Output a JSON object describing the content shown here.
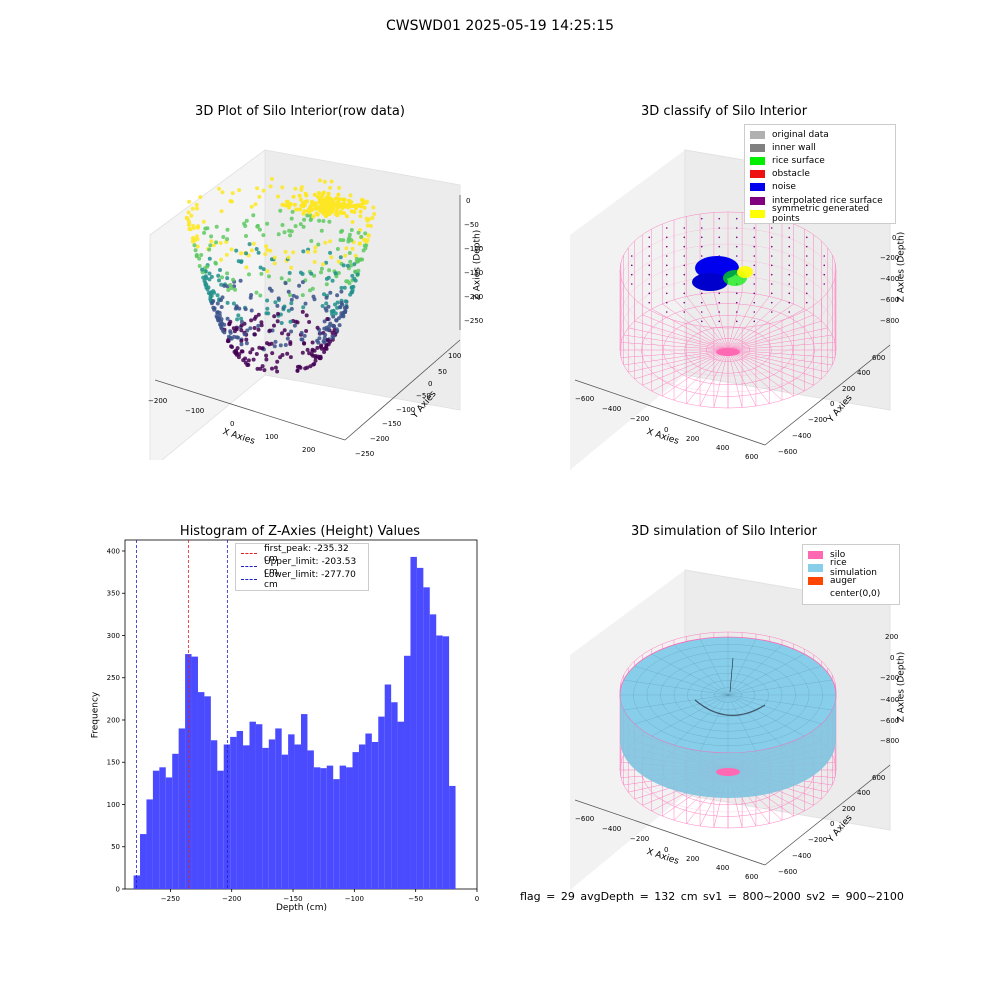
{
  "suptitle": "CWSWD01 2025-05-19 14:25:15",
  "panels": {
    "raw": {
      "title": "3D Plot of Silo Interior(row data)",
      "xlabel": "X Axies",
      "ylabel": "Y Axies",
      "zlabel": "Z Axies (Depth)",
      "xticks": [
        "−200",
        "−100",
        "0",
        "100",
        "200"
      ],
      "yticks": [
        "100",
        "50",
        "0",
        "−50",
        "−100",
        "−150",
        "−200",
        "−250"
      ],
      "zticks": [
        "0",
        "−50",
        "−100",
        "−150",
        "−200",
        "−250"
      ]
    },
    "classify": {
      "title": "3D classify of Silo Interior",
      "xlabel": "X Axies",
      "ylabel": "Y Axies",
      "zlabel": "Z Axies (Depth)",
      "xticks": [
        "−600",
        "−400",
        "−200",
        "0",
        "200",
        "400",
        "600"
      ],
      "yticks": [
        "600",
        "400",
        "200",
        "0",
        "−200",
        "−400",
        "−600"
      ],
      "zticks": [
        "0",
        "−200",
        "−400",
        "−600",
        "−800"
      ],
      "legend": [
        {
          "label": "original data",
          "color": "#b0b0b0"
        },
        {
          "label": "inner wall",
          "color": "#808080"
        },
        {
          "label": "rice surface",
          "color": "#00ee00"
        },
        {
          "label": "obstacle",
          "color": "#ee1111"
        },
        {
          "label": "noise",
          "color": "#0000ee"
        },
        {
          "label": "interpolated rice surface",
          "color": "#800080"
        },
        {
          "label": "symmetric generated points",
          "color": "#ffff00"
        }
      ]
    },
    "simulation": {
      "title": "3D simulation of Silo Interior",
      "xlabel": "X Axies",
      "ylabel": "Y Axies",
      "zlabel": "Z Axies (Depth)",
      "xticks": [
        "−600",
        "−400",
        "−200",
        "0",
        "200",
        "400",
        "600"
      ],
      "yticks": [
        "600",
        "400",
        "200",
        "0",
        "−200",
        "−400",
        "−600"
      ],
      "zticks": [
        "200",
        "0",
        "−200",
        "−400",
        "−600",
        "−800"
      ],
      "legend": [
        {
          "label": "silo",
          "color": "#ff69b4"
        },
        {
          "label": "rice simulation",
          "color": "#87ceeb"
        },
        {
          "label": "auger",
          "color": "#ff4500"
        },
        {
          "label": "center(0,0)",
          "color": "#ffffff"
        }
      ],
      "footer": "flag = 29  avgDepth = 132 cm  sv1 = 800~2000  sv2 = 900~2100"
    }
  },
  "chart_data": {
    "type": "bar",
    "title": "Histogram of Z-Axies (Height) Values",
    "xlabel": "Depth (cm)",
    "ylabel": "Frequency",
    "xlim": [
      -287,
      0
    ],
    "ylim": [
      0,
      413
    ],
    "xticks": [
      -250,
      -200,
      -150,
      -100,
      -50,
      0
    ],
    "yticks": [
      0,
      50,
      100,
      150,
      200,
      250,
      300,
      350,
      400
    ],
    "bin_start": -280,
    "bin_width": 5.25,
    "values": [
      16,
      65,
      106,
      140,
      144,
      132,
      160,
      190,
      278,
      275,
      233,
      228,
      176,
      140,
      171,
      180,
      187,
      170,
      198,
      195,
      167,
      177,
      190,
      159,
      183,
      171,
      207,
      164,
      144,
      143,
      146,
      130,
      146,
      144,
      162,
      171,
      184,
      174,
      204,
      242,
      221,
      198,
      276,
      393,
      380,
      357,
      325,
      300,
      299,
      122
    ],
    "color": "#4a4aff",
    "lines": [
      {
        "label": "first_peak: -235.32 cm",
        "x": -235.32,
        "color": "#e02020"
      },
      {
        "label": "Upper_limit: -203.53 cm",
        "x": -203.53,
        "color": "#2020c0"
      },
      {
        "label": "Lower_limit: -277.70 cm",
        "x": -277.7,
        "color": "#2020c0"
      }
    ],
    "legend_position": "top-center"
  }
}
